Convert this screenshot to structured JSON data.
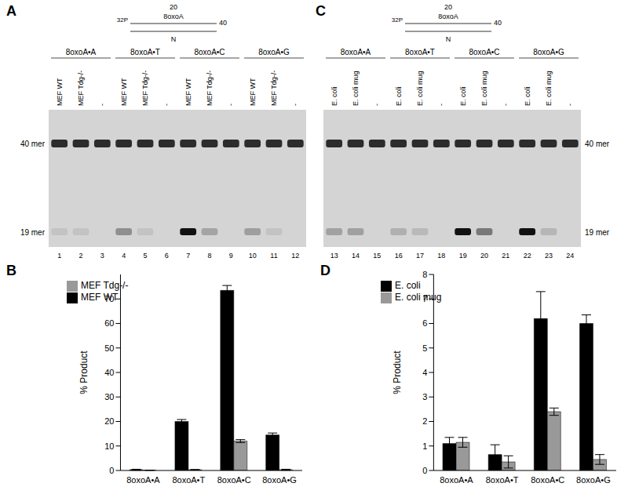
{
  "gels": [
    {
      "panel": "A",
      "schematic": {
        "position": "20",
        "lesion": "8oxoA",
        "length": "40",
        "label": "32P",
        "opposite": "N"
      },
      "groups": [
        {
          "label": "8oxoA•A",
          "lanes": [
            {
              "label": "MEF WT",
              "number": 1
            },
            {
              "label": "MEF Tdg-/-",
              "number": 2
            },
            {
              "label": "-",
              "number": 3
            }
          ]
        },
        {
          "label": "8oxoA•T",
          "lanes": [
            {
              "label": "MEF WT",
              "number": 4
            },
            {
              "label": "MEF Tdg-/-",
              "number": 5
            },
            {
              "label": "-",
              "number": 6
            }
          ]
        },
        {
          "label": "8oxoA•C",
          "lanes": [
            {
              "label": "MEF WT",
              "number": 7
            },
            {
              "label": "MEF Tdg-/-",
              "number": 8
            },
            {
              "label": "-",
              "number": 9
            }
          ]
        },
        {
          "label": "8oxoA•G",
          "lanes": [
            {
              "label": "MEF WT",
              "number": 10
            },
            {
              "label": "MEF Tdg-/-",
              "number": 11
            },
            {
              "label": "-",
              "number": 12
            }
          ]
        }
      ],
      "markers": [
        "40 mer",
        "19 mer"
      ]
    },
    {
      "panel": "C",
      "schematic": {
        "position": "20",
        "lesion": "8oxoA",
        "length": "40",
        "label": "32P",
        "opposite": "N"
      },
      "groups": [
        {
          "label": "8oxoA•A",
          "lanes": [
            {
              "label": "E. coli",
              "number": 13
            },
            {
              "label": "E. coli mug",
              "number": 14
            },
            {
              "label": "-",
              "number": 15
            }
          ]
        },
        {
          "label": "8oxoA•T",
          "lanes": [
            {
              "label": "E. coli",
              "number": 16
            },
            {
              "label": "E. coli mug",
              "number": 17
            },
            {
              "label": "-",
              "number": 18
            }
          ]
        },
        {
          "label": "8oxoA•C",
          "lanes": [
            {
              "label": "E. coli",
              "number": 19
            },
            {
              "label": "E. coli mug",
              "number": 20
            },
            {
              "label": "-",
              "number": 21
            }
          ]
        },
        {
          "label": "8oxoA•G",
          "lanes": [
            {
              "label": "E. coli",
              "number": 22
            },
            {
              "label": "E. coli mug",
              "number": 23
            },
            {
              "label": "-",
              "number": 24
            }
          ]
        }
      ],
      "markers": [
        "40 mer",
        "19 mer"
      ]
    }
  ],
  "chart_data": [
    {
      "type": "bar",
      "panel": "B",
      "categories": [
        "8oxoA•A",
        "8oxoA•T",
        "8oxoA•C",
        "8oxoA•G"
      ],
      "series": [
        {
          "name": "MEF WT",
          "color": "#000000",
          "values": [
            0.3,
            20,
            73.5,
            14.5
          ],
          "errors": [
            0.2,
            0.8,
            2,
            0.8
          ]
        },
        {
          "name": "MEF Tdg-/-",
          "color": "#999999",
          "values": [
            0.1,
            0.3,
            12,
            0.3
          ],
          "errors": [
            0.05,
            0.1,
            0.6,
            0.2
          ]
        }
      ],
      "y_label": "% Product",
      "ylim": [
        0,
        80
      ],
      "yticks": [
        0,
        10,
        20,
        30,
        40,
        50,
        60,
        70
      ],
      "legend": "upper left"
    },
    {
      "type": "bar",
      "panel": "D",
      "categories": [
        "8oxoA•A",
        "8oxoA•T",
        "8oxoA•C",
        "8oxoA•G"
      ],
      "series": [
        {
          "name": "E. coli",
          "color": "#000000",
          "values": [
            1.1,
            0.65,
            6.2,
            6.0
          ],
          "errors": [
            0.25,
            0.4,
            1.1,
            0.35
          ]
        },
        {
          "name": "E. coli mug",
          "color": "#999999",
          "values": [
            1.15,
            0.35,
            2.4,
            0.45
          ],
          "errors": [
            0.2,
            0.25,
            0.15,
            0.2
          ]
        }
      ],
      "y_label": "% Product",
      "ylim": [
        0,
        8
      ],
      "yticks": [
        0,
        1,
        2,
        3,
        4,
        5,
        6,
        7,
        8
      ],
      "legend": "upper left"
    }
  ]
}
